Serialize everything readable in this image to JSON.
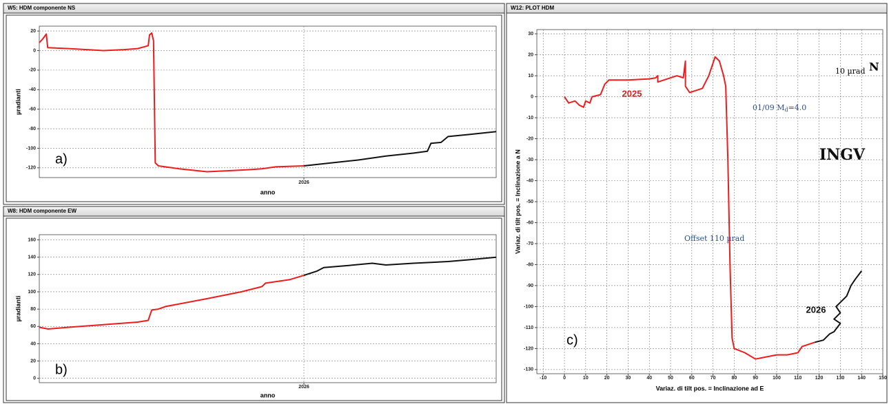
{
  "chart_data": [
    {
      "type": "line",
      "title": "W5: HDM componente NS",
      "ylabel": "µradianti",
      "xlabel": "anno",
      "xlim": [
        2025.4,
        2026.436
      ],
      "ylim": [
        -130,
        25
      ],
      "xticks": [
        2026
      ],
      "yticks": [
        20,
        0,
        -20,
        -40,
        -60,
        -80,
        -100,
        -120
      ],
      "grid": true,
      "annotations": [
        "a)"
      ],
      "series": [
        {
          "color": "#ee1c1c",
          "x": [
            2025.4,
            2025.408,
            2025.416,
            2025.419,
            2025.467,
            2025.545,
            2025.592,
            2025.623,
            2025.639,
            2025.647,
            2025.65,
            2025.655,
            2025.659,
            2025.663,
            2025.67,
            2025.717,
            2025.78,
            2025.827,
            2025.873,
            2025.905,
            2025.936,
            2026.0
          ],
          "values": [
            8,
            12,
            17,
            3,
            2,
            0,
            1,
            2,
            4,
            5,
            16,
            18,
            10,
            -115,
            -118,
            -121,
            -124,
            -123,
            -122,
            -121,
            -119,
            -118
          ]
        },
        {
          "color": "#111111",
          "x": [
            2026.0,
            2026.061,
            2026.123,
            2026.186,
            2026.248,
            2026.28,
            2026.288,
            2026.311,
            2026.327,
            2026.373,
            2026.436
          ],
          "values": [
            -118,
            -115,
            -112,
            -108,
            -105,
            -103,
            -95,
            -94,
            -88,
            -86,
            -83
          ]
        }
      ]
    },
    {
      "type": "line",
      "title": "W8: HDM componente EW",
      "ylabel": "µradianti",
      "xlabel": "anno",
      "xlim": [
        2025.4,
        2026.436
      ],
      "ylim": [
        -5,
        166
      ],
      "xticks": [
        2026
      ],
      "yticks": [
        0,
        20,
        40,
        60,
        80,
        100,
        120,
        140,
        160
      ],
      "grid": true,
      "annotations": [
        "b)"
      ],
      "series": [
        {
          "color": "#ee1c1c",
          "x": [
            2025.4,
            2025.42,
            2025.467,
            2025.545,
            2025.623,
            2025.647,
            2025.655,
            2025.67,
            2025.686,
            2025.78,
            2025.858,
            2025.905,
            2025.913,
            2025.967,
            2026.0
          ],
          "values": [
            59,
            57,
            59,
            62,
            65,
            67,
            79,
            80,
            83,
            92,
            100,
            106,
            110,
            114,
            119
          ]
        },
        {
          "color": "#111111",
          "x": [
            2026.0,
            2026.03,
            2026.045,
            2026.092,
            2026.155,
            2026.186,
            2026.248,
            2026.327,
            2026.373,
            2026.436
          ],
          "values": [
            119,
            124,
            128,
            130,
            133,
            131,
            133,
            135,
            137,
            140
          ]
        }
      ]
    },
    {
      "type": "line",
      "title": "W12: PLOT HDM",
      "ylabel": "Variaz. di tilt pos. = Inclinazione a N",
      "xlabel": "Variaz. di tilt pos. = Inclinazione ad E",
      "xlim": [
        -13,
        150
      ],
      "ylim": [
        -132,
        32
      ],
      "xticks": [
        -10,
        0,
        10,
        20,
        30,
        40,
        50,
        60,
        70,
        80,
        90,
        100,
        110,
        120,
        130,
        140,
        150
      ],
      "yticks": [
        30,
        20,
        10,
        0,
        -10,
        -20,
        -30,
        -40,
        -50,
        -60,
        -70,
        -80,
        -90,
        -100,
        -110,
        -120,
        -130
      ],
      "grid": true,
      "annotations": [
        "c)",
        "Offset 110 µrad",
        "10 µrad",
        "N",
        "INGV"
      ],
      "event_label": {
        "text": "01/09 M",
        "sub": "d",
        "rest": "=4.0"
      },
      "series": [
        {
          "name": "2025",
          "color": "#ee1c1c",
          "x": [
            0,
            2,
            5,
            7,
            9,
            10,
            12,
            13,
            17,
            19,
            21,
            30,
            40,
            43,
            44,
            44,
            50,
            53,
            56,
            57,
            57,
            59,
            62,
            65,
            68,
            70,
            71,
            73,
            75,
            76,
            77,
            78,
            79,
            80,
            85,
            90,
            95,
            100,
            105,
            110,
            112,
            118
          ],
          "values": [
            0,
            -3,
            -2,
            -4,
            -5,
            -2,
            -3,
            0,
            1,
            6,
            8,
            8,
            8.5,
            9,
            10,
            7,
            9,
            10,
            9,
            17,
            5,
            2,
            3,
            4,
            10,
            16,
            19,
            17,
            10,
            5,
            -30,
            -80,
            -115,
            -120,
            -122,
            -125,
            -124,
            -123,
            -123,
            -122,
            -119,
            -117
          ]
        },
        {
          "name": "2026",
          "color": "#111111",
          "x": [
            118,
            122,
            125,
            127,
            130,
            127,
            130,
            128,
            133,
            135,
            137,
            140
          ],
          "values": [
            -117,
            -116,
            -113,
            -112,
            -108,
            -106,
            -103,
            -100,
            -95,
            -90,
            -87,
            -83
          ]
        }
      ]
    }
  ]
}
